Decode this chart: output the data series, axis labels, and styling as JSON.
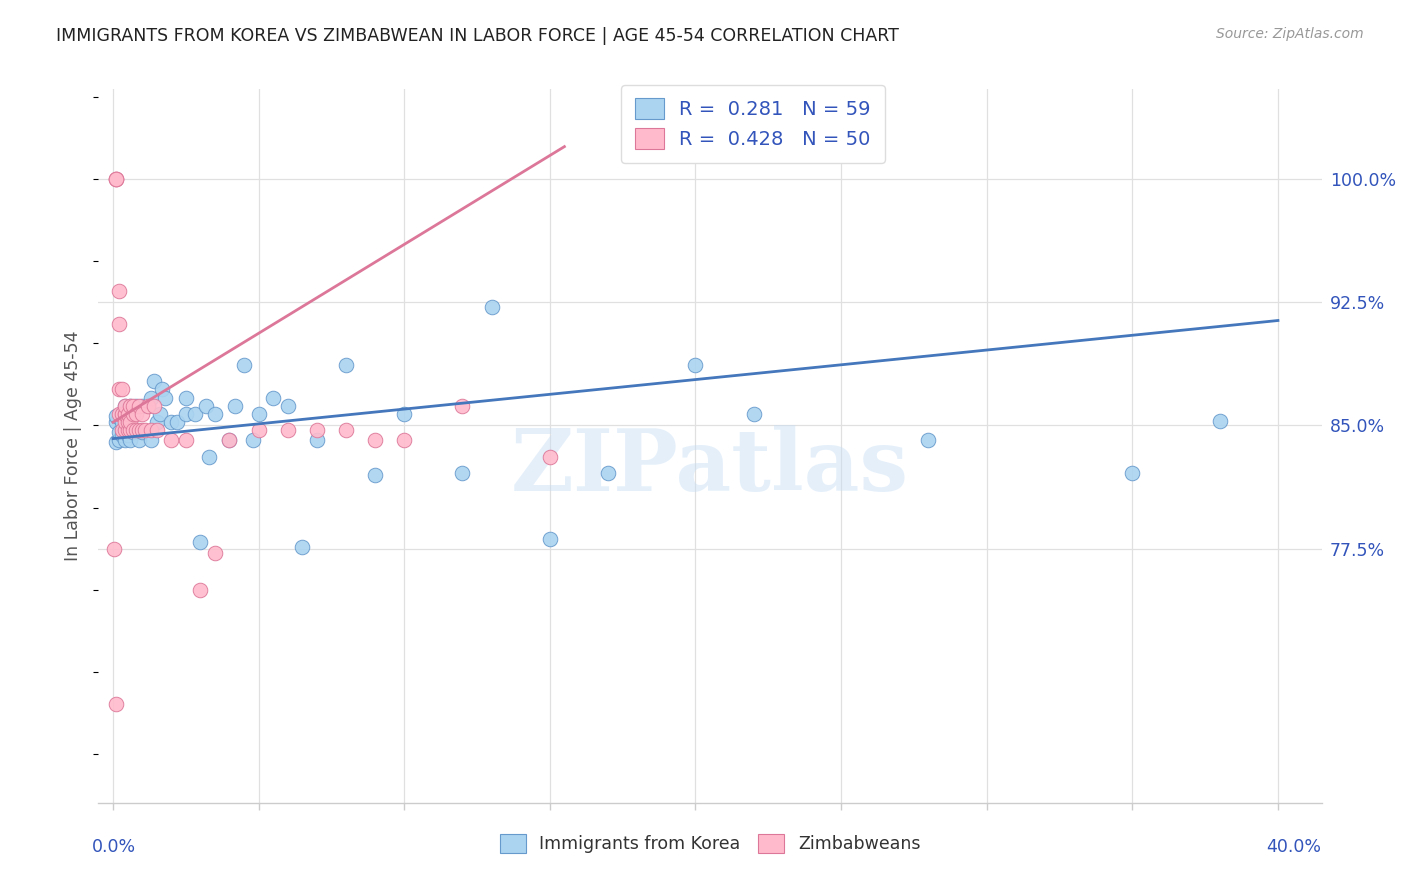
{
  "title": "IMMIGRANTS FROM KOREA VS ZIMBABWEAN IN LABOR FORCE | AGE 45-54 CORRELATION CHART",
  "source": "Source: ZipAtlas.com",
  "ylabel": "In Labor Force | Age 45-54",
  "title_color": "#222222",
  "source_color": "#999999",
  "grid_color": "#e0e0e0",
  "axis_color": "#cccccc",
  "blue_color": "#aad4f0",
  "blue_edge": "#6699cc",
  "blue_line": "#4477bb",
  "pink_color": "#ffbbcc",
  "pink_edge": "#dd7799",
  "pink_line": "#dd7799",
  "legend_r_color": "#3355bb",
  "ylabel_color": "#555555",
  "watermark": "ZIPatlas",
  "korea_R": 0.281,
  "korea_N": 59,
  "zimb_R": 0.428,
  "zimb_N": 50,
  "korea_x": [
    0.001,
    0.001,
    0.001,
    0.002,
    0.002,
    0.003,
    0.003,
    0.003,
    0.004,
    0.004,
    0.005,
    0.005,
    0.005,
    0.006,
    0.006,
    0.007,
    0.007,
    0.008,
    0.009,
    0.01,
    0.01,
    0.012,
    0.013,
    0.013,
    0.014,
    0.015,
    0.016,
    0.017,
    0.018,
    0.02,
    0.022,
    0.025,
    0.025,
    0.028,
    0.03,
    0.032,
    0.033,
    0.035,
    0.04,
    0.042,
    0.045,
    0.048,
    0.05,
    0.055,
    0.06,
    0.065,
    0.07,
    0.08,
    0.09,
    0.1,
    0.12,
    0.13,
    0.15,
    0.17,
    0.2,
    0.22,
    0.28,
    0.35,
    0.38
  ],
  "korea_y": [
    0.852,
    0.84,
    0.856,
    0.841,
    0.846,
    0.852,
    0.844,
    0.857,
    0.862,
    0.841,
    0.844,
    0.852,
    0.857,
    0.841,
    0.862,
    0.857,
    0.846,
    0.862,
    0.841,
    0.846,
    0.862,
    0.862,
    0.867,
    0.841,
    0.877,
    0.852,
    0.857,
    0.872,
    0.867,
    0.852,
    0.852,
    0.857,
    0.867,
    0.857,
    0.779,
    0.862,
    0.831,
    0.857,
    0.841,
    0.862,
    0.887,
    0.841,
    0.857,
    0.867,
    0.862,
    0.776,
    0.841,
    0.887,
    0.82,
    0.857,
    0.821,
    0.922,
    0.781,
    0.821,
    0.887,
    0.857,
    0.841,
    0.821,
    0.853
  ],
  "zimb_x": [
    0.0005,
    0.001,
    0.001,
    0.001,
    0.002,
    0.002,
    0.002,
    0.002,
    0.003,
    0.003,
    0.003,
    0.004,
    0.004,
    0.004,
    0.004,
    0.004,
    0.005,
    0.005,
    0.005,
    0.006,
    0.006,
    0.006,
    0.007,
    0.007,
    0.007,
    0.008,
    0.008,
    0.009,
    0.009,
    0.01,
    0.01,
    0.011,
    0.012,
    0.013,
    0.014,
    0.015,
    0.02,
    0.025,
    0.03,
    0.035,
    0.04,
    0.05,
    0.06,
    0.07,
    0.08,
    0.09,
    0.1,
    0.12,
    0.15,
    0.001
  ],
  "zimb_y": [
    0.775,
    1.0,
    1.0,
    1.0,
    0.857,
    0.872,
    0.912,
    0.932,
    0.847,
    0.857,
    0.872,
    0.847,
    0.852,
    0.857,
    0.857,
    0.862,
    0.847,
    0.852,
    0.857,
    0.847,
    0.852,
    0.862,
    0.847,
    0.857,
    0.862,
    0.847,
    0.857,
    0.847,
    0.862,
    0.847,
    0.857,
    0.847,
    0.862,
    0.847,
    0.862,
    0.847,
    0.841,
    0.841,
    0.75,
    0.772,
    0.841,
    0.847,
    0.847,
    0.847,
    0.847,
    0.841,
    0.841,
    0.862,
    0.831,
    0.68
  ],
  "korea_trend_x": [
    0.0,
    0.4
  ],
  "korea_trend_y": [
    0.842,
    0.914
  ],
  "zimb_trend_x": [
    0.0,
    0.155
  ],
  "zimb_trend_y": [
    0.852,
    1.02
  ],
  "xlim": [
    -0.005,
    0.415
  ],
  "ylim": [
    0.62,
    1.055
  ],
  "xtick_positions": [
    0.0,
    0.05,
    0.1,
    0.15,
    0.2,
    0.25,
    0.3,
    0.35,
    0.4
  ],
  "ytick_positions": [
    0.775,
    0.85,
    0.925,
    1.0
  ],
  "ytick_labels": [
    "77.5%",
    "85.0%",
    "92.5%",
    "100.0%"
  ]
}
